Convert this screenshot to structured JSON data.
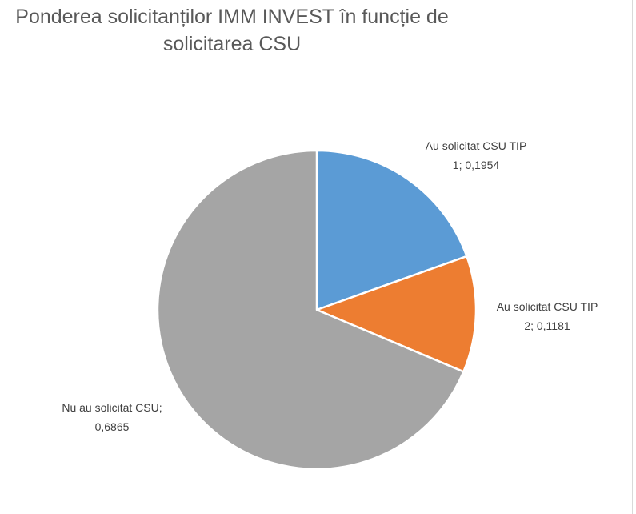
{
  "chart_data": {
    "type": "pie",
    "title": "Ponderea solicitanților IMM INVEST în funcție de solicitarea CSU",
    "title_lines": [
      "Ponderea solicitanților IMM INVEST în funcție de",
      "solicitarea CSU"
    ],
    "start_angle_deg": 0,
    "direction": "clockwise",
    "slices": [
      {
        "label": "Au solicitat CSU TIP 1",
        "value": 0.1954,
        "color": "#5b9bd5",
        "data_label_lines": [
          "Au solicitat CSU TIP",
          "1; 0,1954"
        ]
      },
      {
        "label": "Au solicitat CSU TIP 2",
        "value": 0.1181,
        "color": "#ed7d31",
        "data_label_lines": [
          "Au solicitat CSU TIP",
          "2; 0,1181"
        ]
      },
      {
        "label": "Nu au solicitat CSU",
        "value": 0.6865,
        "color": "#a5a5a5",
        "data_label_lines": [
          "Nu au solicitat CSU;",
          "0,6865"
        ]
      }
    ],
    "legend": "none"
  }
}
